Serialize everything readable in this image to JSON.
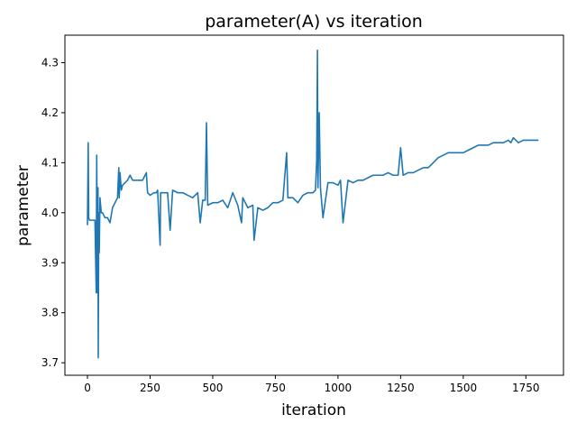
{
  "chart_data": {
    "type": "line",
    "title": "parameter(A) vs iteration",
    "xlabel": "iteration",
    "ylabel": "parameter",
    "xlim": [
      -90,
      1900
    ],
    "ylim": [
      3.675,
      4.355
    ],
    "xticks": [
      0,
      250,
      500,
      750,
      1000,
      1250,
      1500,
      1750
    ],
    "yticks": [
      3.7,
      3.8,
      3.9,
      4.0,
      4.1,
      4.2,
      4.3
    ],
    "grid": false,
    "legend": "none",
    "colors": {
      "line": "#1f77b4",
      "axes": "#000000",
      "background": "#ffffff"
    },
    "series": [
      {
        "x": [
          0,
          3,
          5,
          8,
          15,
          25,
          30,
          35,
          37,
          40,
          42,
          43,
          45,
          47,
          50,
          55,
          60,
          70,
          80,
          90,
          100,
          110,
          120,
          125,
          127,
          130,
          135,
          140,
          150,
          160,
          170,
          180,
          200,
          220,
          235,
          240,
          250,
          265,
          275,
          280,
          290,
          292,
          300,
          320,
          330,
          340,
          360,
          380,
          400,
          420,
          440,
          450,
          460,
          470,
          475,
          480,
          500,
          520,
          540,
          560,
          580,
          600,
          615,
          620,
          640,
          660,
          665,
          680,
          700,
          720,
          740,
          760,
          780,
          795,
          800,
          820,
          840,
          860,
          880,
          900,
          910,
          915,
          918,
          920,
          925,
          930,
          940,
          960,
          980,
          1000,
          1010,
          1020,
          1040,
          1060,
          1080,
          1100,
          1120,
          1140,
          1160,
          1180,
          1200,
          1220,
          1240,
          1250,
          1260,
          1280,
          1300,
          1320,
          1340,
          1360,
          1380,
          1400,
          1420,
          1440,
          1460,
          1480,
          1500,
          1520,
          1540,
          1560,
          1580,
          1600,
          1620,
          1640,
          1660,
          1680,
          1690,
          1700,
          1720,
          1740,
          1760,
          1780,
          1800
        ],
        "values": [
          3.975,
          4.14,
          3.99,
          3.985,
          3.985,
          3.985,
          3.985,
          3.84,
          4.115,
          3.84,
          4.05,
          3.71,
          4.0,
          3.92,
          4.03,
          4.0,
          4.0,
          3.99,
          3.99,
          3.98,
          4.01,
          4.02,
          4.03,
          4.09,
          4.03,
          4.08,
          4.045,
          4.055,
          4.06,
          4.065,
          4.075,
          4.065,
          4.065,
          4.065,
          4.08,
          4.04,
          4.035,
          4.04,
          4.04,
          4.045,
          3.935,
          4.04,
          4.04,
          4.04,
          3.965,
          4.045,
          4.04,
          4.04,
          4.035,
          4.03,
          4.04,
          3.98,
          4.025,
          4.025,
          4.18,
          4.015,
          4.02,
          4.02,
          4.025,
          4.01,
          4.04,
          4.015,
          3.98,
          4.03,
          4.01,
          4.015,
          3.945,
          4.01,
          4.005,
          4.01,
          4.02,
          4.02,
          4.025,
          4.12,
          4.03,
          4.03,
          4.02,
          4.035,
          4.04,
          4.04,
          4.045,
          4.105,
          4.325,
          4.05,
          4.2,
          4.05,
          3.99,
          4.06,
          4.06,
          4.055,
          4.065,
          3.98,
          4.065,
          4.06,
          4.065,
          4.065,
          4.07,
          4.075,
          4.075,
          4.075,
          4.08,
          4.075,
          4.075,
          4.13,
          4.075,
          4.08,
          4.08,
          4.085,
          4.09,
          4.09,
          4.1,
          4.11,
          4.115,
          4.12,
          4.12,
          4.12,
          4.12,
          4.125,
          4.13,
          4.135,
          4.135,
          4.135,
          4.14,
          4.14,
          4.14,
          4.145,
          4.14,
          4.15,
          4.14,
          4.145,
          4.145,
          4.145,
          4.145
        ],
        "noise_note": ""
      }
    ]
  }
}
